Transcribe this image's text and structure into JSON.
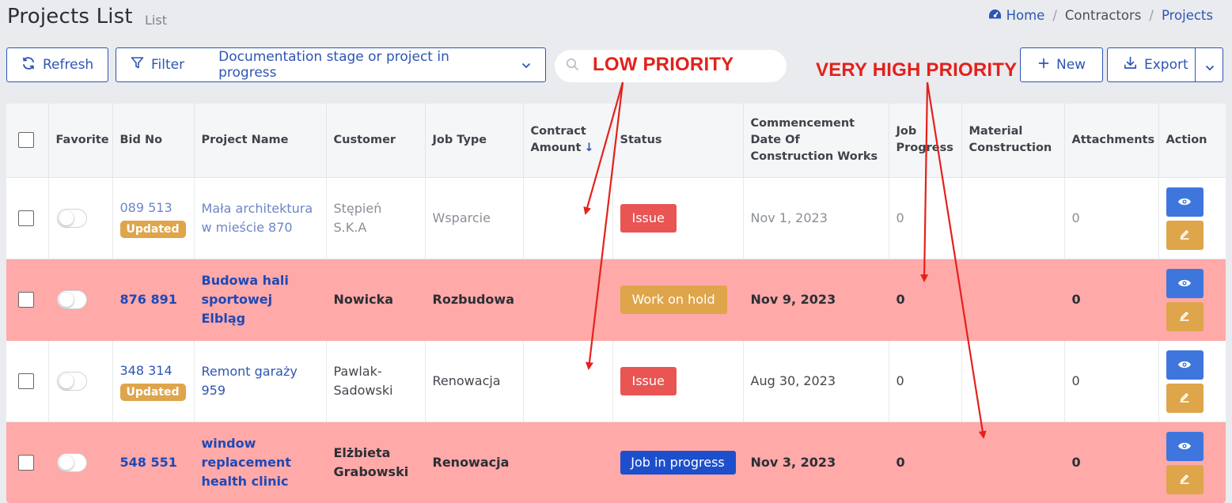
{
  "header": {
    "title": "Projects List",
    "subtitle": "List"
  },
  "breadcrumb": {
    "home": "Home",
    "contractors": "Contractors",
    "projects": "Projects"
  },
  "toolbar": {
    "refresh_label": "Refresh",
    "filter_label": "Filter",
    "filter_value": "Documentation stage or project in progress",
    "search_value": "",
    "new_label": "New",
    "export_label": "Export"
  },
  "annotations": {
    "low_priority": "LOW PRIORITY",
    "very_high_priority": "VERY HIGH PRIORITY"
  },
  "table": {
    "columns": {
      "favorite": "Favorite",
      "bid_no": "Bid No",
      "project_name": "Project Name",
      "customer": "Customer",
      "job_type": "Job Type",
      "contract_amount": "Contract Amount",
      "status": "Status",
      "commencement": "Commencement Date Of Construction Works",
      "job_progress": "Job Progress",
      "material": "Material Construction",
      "attachments": "Attachments",
      "action": "Action"
    },
    "rows": [
      {
        "bid_no": "089 513",
        "badge": "Updated",
        "project_name": "Mała architektura w mieście 870",
        "customer": "Stępień S.K.A",
        "job_type": "Wsparcie",
        "contract_amount": "",
        "status": "Issue",
        "commencement": "Nov 1, 2023",
        "job_progress": "0",
        "material": "",
        "attachments": "0"
      },
      {
        "bid_no": "876 891",
        "badge": "",
        "project_name": "Budowa hali sportowej Elbląg",
        "customer": "Nowicka",
        "job_type": "Rozbudowa",
        "contract_amount": "",
        "status": "Work on hold",
        "commencement": "Nov 9, 2023",
        "job_progress": "0",
        "material": "",
        "attachments": "0"
      },
      {
        "bid_no": "348 314",
        "badge": "Updated",
        "project_name": "Remont garaży 959",
        "customer": "Pawlak-Sadowski",
        "job_type": "Renowacja",
        "contract_amount": "",
        "status": "Issue",
        "commencement": "Aug 30, 2023",
        "job_progress": "0",
        "material": "",
        "attachments": "0"
      },
      {
        "bid_no": "548 551",
        "badge": "",
        "project_name": "window replacement health clinic",
        "customer": "Elżbieta Grabowski",
        "job_type": "Renowacja",
        "contract_amount": "",
        "status": "Job in progress",
        "commencement": "Nov 3, 2023",
        "job_progress": "0",
        "material": "",
        "attachments": "0"
      }
    ]
  },
  "colors": {
    "primary": "#2e55b4",
    "high_priority_row": "#ffa9a9",
    "issue": "#e85553",
    "hold": "#dea54b",
    "in_progress": "#1d4fcc",
    "annotation": "#e3211b"
  }
}
